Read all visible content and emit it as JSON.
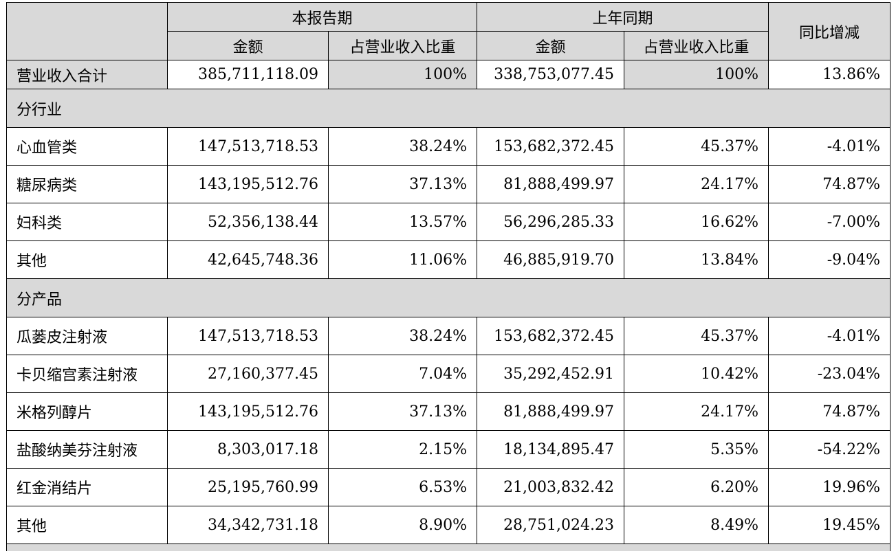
{
  "header": {
    "current_period": "本报告期",
    "prior_period": "上年同期",
    "yoy": "同比增减",
    "amount": "金额",
    "ratio": "占营业收入比重"
  },
  "total": {
    "label": "营业收入合计",
    "cur_amount": "385,711,118.09",
    "cur_ratio": "100%",
    "prev_amount": "338,753,077.45",
    "prev_ratio": "100%",
    "yoy": "13.86%"
  },
  "sections": [
    {
      "title": "分行业",
      "rows": [
        {
          "label": "心血管类",
          "cur_amount": "147,513,718.53",
          "cur_ratio": "38.24%",
          "prev_amount": "153,682,372.45",
          "prev_ratio": "45.37%",
          "yoy": "-4.01%"
        },
        {
          "label": "糖尿病类",
          "cur_amount": "143,195,512.76",
          "cur_ratio": "37.13%",
          "prev_amount": "81,888,499.97",
          "prev_ratio": "24.17%",
          "yoy": "74.87%"
        },
        {
          "label": "妇科类",
          "cur_amount": "52,356,138.44",
          "cur_ratio": "13.57%",
          "prev_amount": "56,296,285.33",
          "prev_ratio": "16.62%",
          "yoy": "-7.00%"
        },
        {
          "label": "其他",
          "cur_amount": "42,645,748.36",
          "cur_ratio": "11.06%",
          "prev_amount": "46,885,919.70",
          "prev_ratio": "13.84%",
          "yoy": "-9.04%"
        }
      ]
    },
    {
      "title": "分产品",
      "rows": [
        {
          "label": "瓜蒌皮注射液",
          "cur_amount": "147,513,718.53",
          "cur_ratio": "38.24%",
          "prev_amount": "153,682,372.45",
          "prev_ratio": "45.37%",
          "yoy": "-4.01%"
        },
        {
          "label": "卡贝缩宫素注射液",
          "cur_amount": "27,160,377.45",
          "cur_ratio": "7.04%",
          "prev_amount": "35,292,452.91",
          "prev_ratio": "10.42%",
          "yoy": "-23.04%"
        },
        {
          "label": "米格列醇片",
          "cur_amount": "143,195,512.76",
          "cur_ratio": "37.13%",
          "prev_amount": "81,888,499.97",
          "prev_ratio": "24.17%",
          "yoy": "74.87%"
        },
        {
          "label": "盐酸纳美芬注射液",
          "cur_amount": "8,303,017.18",
          "cur_ratio": "2.15%",
          "prev_amount": "18,134,895.47",
          "prev_ratio": "5.35%",
          "yoy": "-54.22%"
        },
        {
          "label": "红金消结片",
          "cur_amount": "25,195,760.99",
          "cur_ratio": "6.53%",
          "prev_amount": "21,003,832.42",
          "prev_ratio": "6.20%",
          "yoy": "19.96%"
        },
        {
          "label": "其他",
          "cur_amount": "34,342,731.18",
          "cur_ratio": "8.90%",
          "prev_amount": "28,751,024.23",
          "prev_ratio": "8.49%",
          "yoy": "19.45%"
        }
      ]
    }
  ]
}
